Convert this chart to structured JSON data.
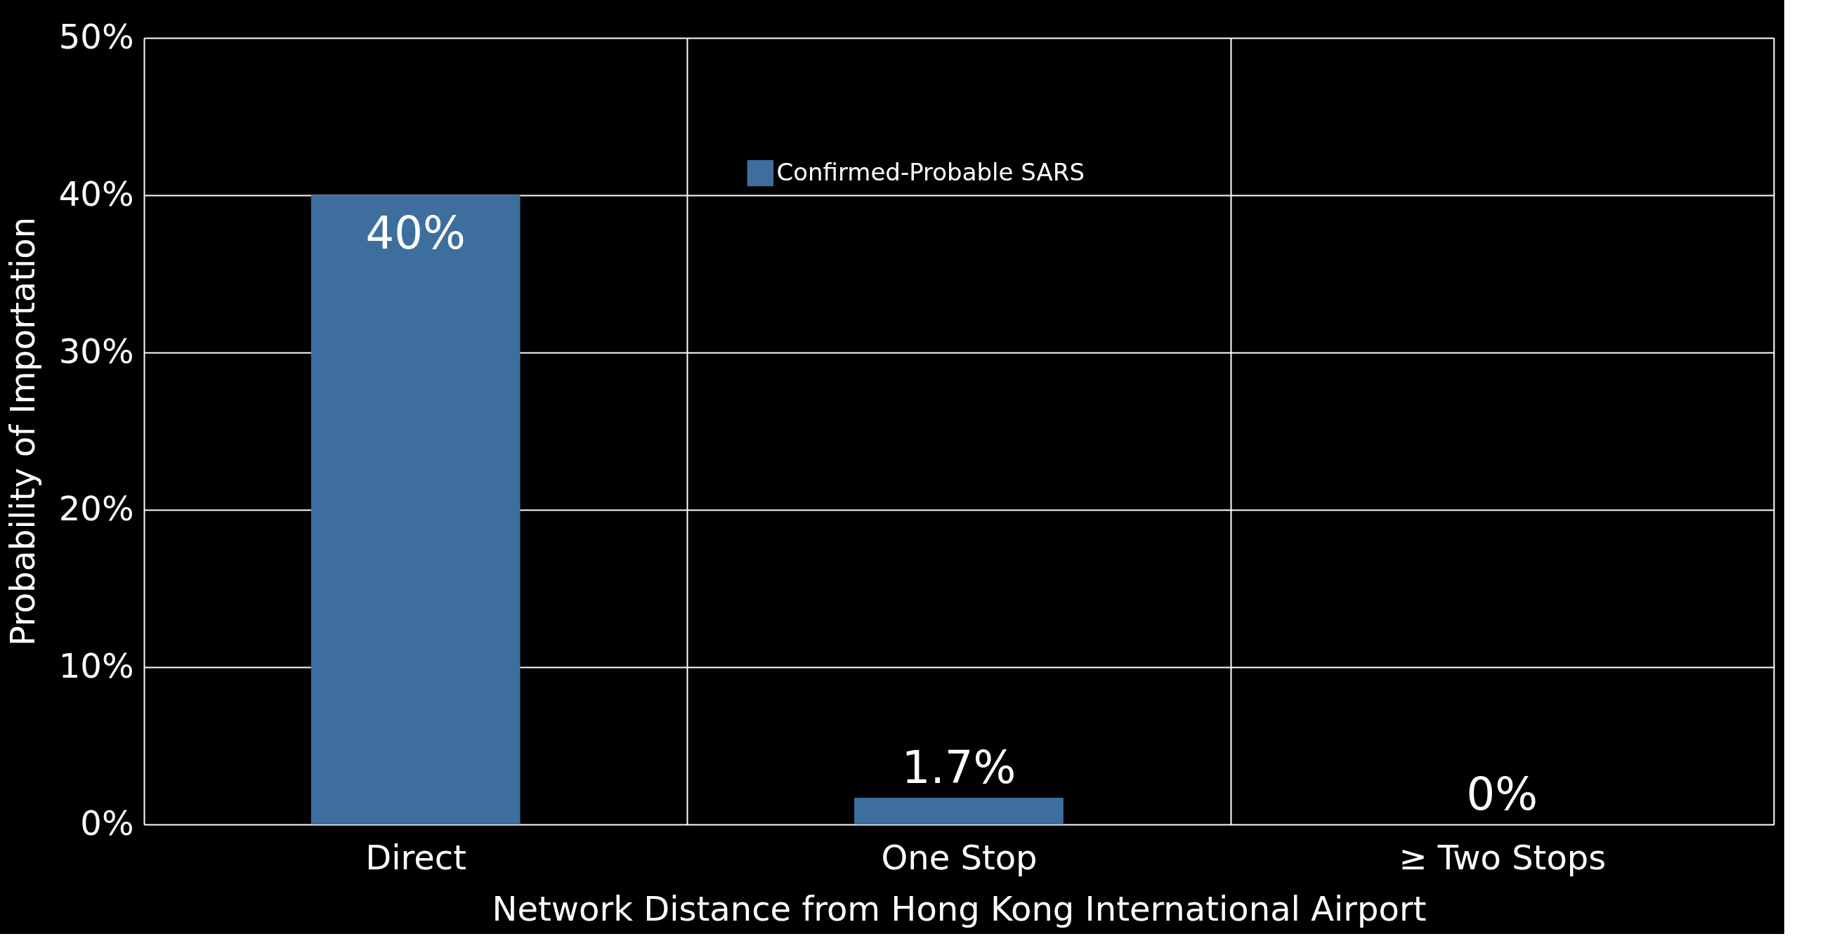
{
  "chart_data": {
    "type": "bar",
    "xlabel": "Network Distance from Hong Kong International Airport",
    "ylabel": "Probability of Importation",
    "categories": [
      "Direct",
      "One Stop",
      "≥ Two Stops"
    ],
    "series": [
      {
        "name": "Confirmed-Probable SARS",
        "color": "#3e6e9e",
        "values": [
          40,
          1.7,
          0
        ],
        "value_labels": [
          "40%",
          "1.7%",
          "0%"
        ]
      }
    ],
    "ylim": [
      0,
      50
    ],
    "yticks": [
      {
        "value": 0,
        "label": "0%"
      },
      {
        "value": 10,
        "label": "10%"
      },
      {
        "value": 20,
        "label": "20%"
      },
      {
        "value": 30,
        "label": "30%"
      },
      {
        "value": 40,
        "label": "40%"
      },
      {
        "value": 50,
        "label": "50%"
      }
    ],
    "grid": true,
    "legend": "top"
  }
}
